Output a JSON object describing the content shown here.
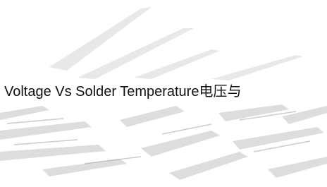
{
  "title": "Voltage Vs Solder Temperature电压与"
}
